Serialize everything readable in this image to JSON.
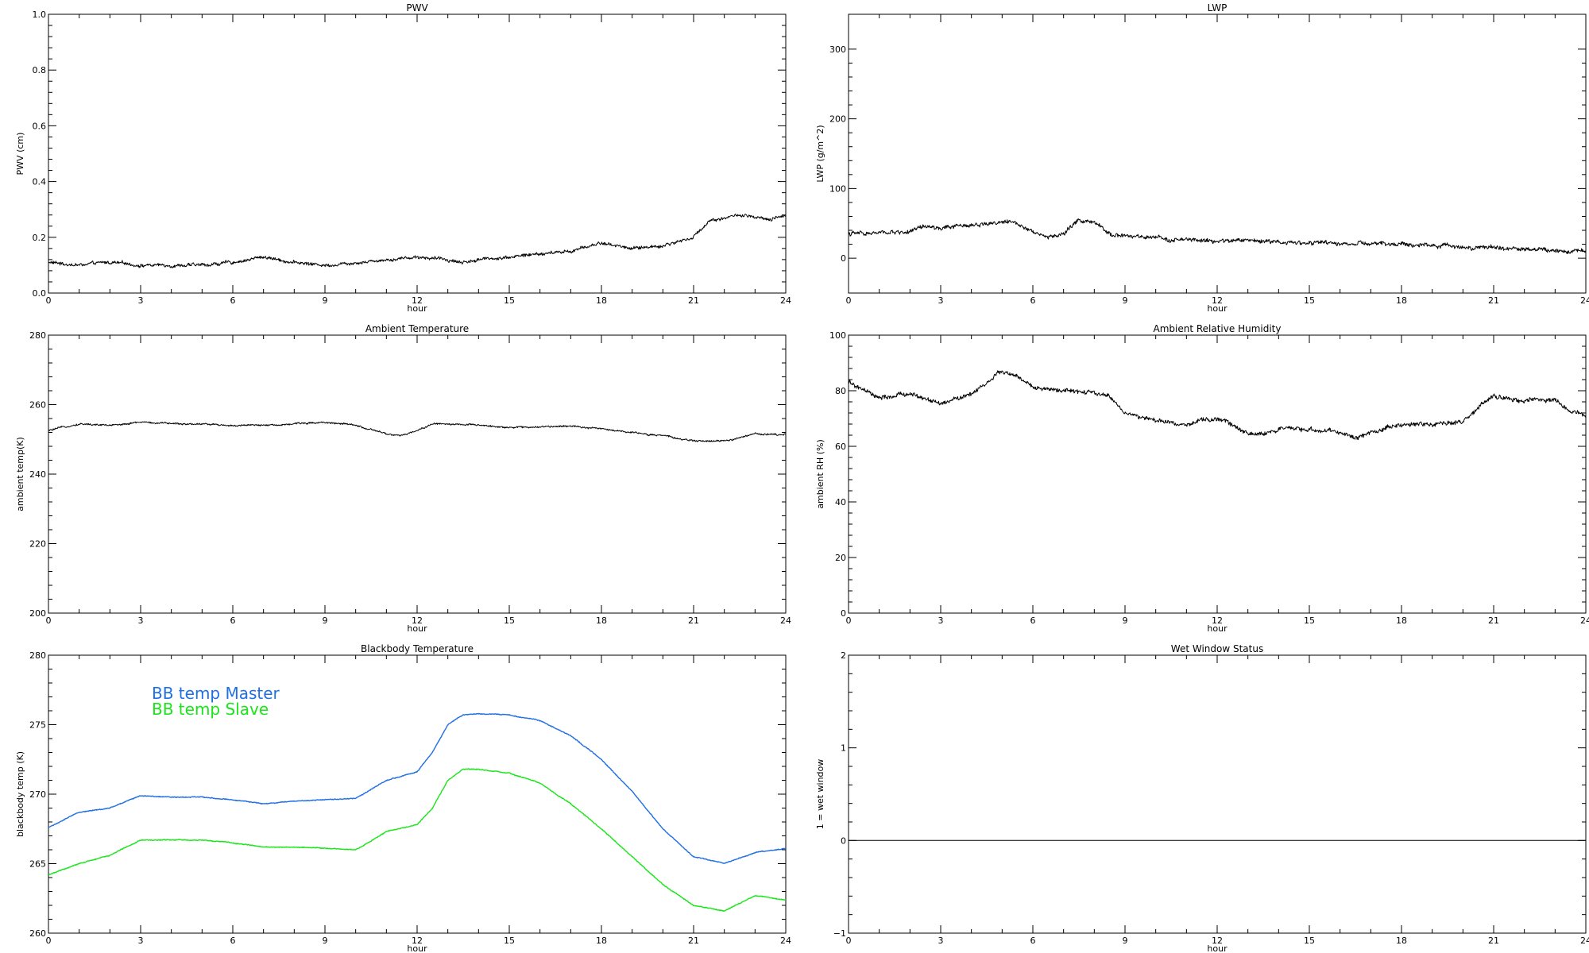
{
  "chart_data": [
    {
      "id": "pwv",
      "type": "line",
      "title": "PWV",
      "xlabel": "hour",
      "ylabel": "PWV (cm)",
      "xlim": [
        0,
        24
      ],
      "ylim": [
        0.0,
        1.0
      ],
      "xticks": [
        0,
        3,
        6,
        9,
        12,
        15,
        18,
        21,
        24
      ],
      "yticks": [
        0.0,
        0.2,
        0.4,
        0.6,
        0.8,
        1.0
      ],
      "ytick_labels": [
        "0.0",
        "0.2",
        "0.4",
        "0.6",
        "0.8",
        "1.0"
      ],
      "grid": false,
      "noise": 0.006,
      "series": [
        {
          "color": "#000000",
          "x": [
            0,
            1,
            2,
            3,
            4,
            5,
            6,
            7,
            8,
            9,
            10,
            11,
            12,
            13,
            13.5,
            14,
            15,
            16,
            17,
            18,
            19,
            20,
            21,
            21.5,
            22,
            22.5,
            23,
            23.5,
            24
          ],
          "y": [
            0.11,
            0.1,
            0.11,
            0.1,
            0.1,
            0.1,
            0.11,
            0.13,
            0.11,
            0.1,
            0.11,
            0.12,
            0.13,
            0.12,
            0.11,
            0.12,
            0.13,
            0.14,
            0.15,
            0.18,
            0.16,
            0.17,
            0.2,
            0.26,
            0.27,
            0.28,
            0.27,
            0.26,
            0.28
          ]
        }
      ]
    },
    {
      "id": "lwp",
      "type": "line",
      "title": "LWP",
      "xlabel": "hour",
      "ylabel": "LWP (g/m^2)",
      "xlim": [
        0,
        24
      ],
      "ylim": [
        -50,
        350
      ],
      "xticks": [
        0,
        3,
        6,
        9,
        12,
        15,
        18,
        21,
        24
      ],
      "yticks": [
        0,
        100,
        200,
        300
      ],
      "ytick_labels": [
        "0",
        "100",
        "200",
        "300"
      ],
      "grid": false,
      "noise": 3,
      "series": [
        {
          "color": "#000000",
          "x": [
            0,
            1,
            2,
            2.5,
            3,
            4,
            5,
            5.5,
            6,
            6.5,
            7,
            7.5,
            8,
            8.5,
            9,
            10,
            11,
            12,
            13,
            14,
            15,
            16,
            17,
            18,
            19,
            20,
            21,
            22,
            23,
            24
          ],
          "y": [
            35,
            36,
            38,
            45,
            42,
            48,
            52,
            50,
            40,
            30,
            35,
            55,
            50,
            35,
            32,
            28,
            26,
            24,
            26,
            24,
            22,
            21,
            20,
            20,
            18,
            17,
            15,
            13,
            12,
            10
          ]
        }
      ]
    },
    {
      "id": "ambient-temp",
      "type": "line",
      "title": "Ambient Temperature",
      "xlabel": "hour",
      "ylabel": "ambient temp(K)",
      "xlim": [
        0,
        24
      ],
      "ylim": [
        200,
        280
      ],
      "xticks": [
        0,
        3,
        6,
        9,
        12,
        15,
        18,
        21,
        24
      ],
      "yticks": [
        200,
        220,
        240,
        260,
        280
      ],
      "ytick_labels": [
        "200",
        "220",
        "240",
        "260",
        "280"
      ],
      "grid": false,
      "noise": 0.25,
      "series": [
        {
          "color": "#000000",
          "x": [
            0,
            1,
            2,
            3,
            4,
            5,
            6,
            7,
            8,
            9,
            10,
            11,
            11.5,
            12,
            12.5,
            13,
            14,
            15,
            16,
            17,
            18,
            19,
            20,
            21,
            22,
            23,
            24
          ],
          "y": [
            252.5,
            254.5,
            254.0,
            255.0,
            254.5,
            254.5,
            254.0,
            254.0,
            254.5,
            255.0,
            254.0,
            251.5,
            251.0,
            252.5,
            254.5,
            254.5,
            254.0,
            253.5,
            253.5,
            254.0,
            253.0,
            252.0,
            251.0,
            249.5,
            249.5,
            251.5,
            251.5
          ]
        }
      ]
    },
    {
      "id": "ambient-rh",
      "type": "line",
      "title": "Ambient Relative Humidity",
      "xlabel": "hour",
      "ylabel": "ambient RH (%)",
      "xlim": [
        0,
        24
      ],
      "ylim": [
        0,
        100
      ],
      "xticks": [
        0,
        3,
        6,
        9,
        12,
        15,
        18,
        21,
        24
      ],
      "yticks": [
        0,
        20,
        40,
        60,
        80,
        100
      ],
      "ytick_labels": [
        "0",
        "20",
        "40",
        "60",
        "80",
        "100"
      ],
      "grid": false,
      "noise": 0.8,
      "series": [
        {
          "color": "#000000",
          "x": [
            0,
            0.5,
            1,
            2,
            3,
            3.5,
            4,
            5,
            5.5,
            6,
            7,
            8,
            8.5,
            9,
            10,
            11,
            12,
            12.5,
            13,
            14,
            15,
            16,
            16.5,
            17,
            18,
            19,
            20,
            20.5,
            21,
            22,
            23,
            23.5,
            24
          ],
          "y": [
            83,
            80,
            77,
            79,
            75,
            77,
            79,
            87,
            85,
            81,
            80,
            79,
            78,
            72,
            69,
            68,
            70,
            68,
            64,
            66,
            66,
            65,
            63,
            65,
            68,
            68,
            69,
            74,
            78,
            76,
            77,
            72,
            71
          ]
        }
      ]
    },
    {
      "id": "blackbody-temp",
      "type": "line",
      "title": "Blackbody Temperature",
      "xlabel": "hour",
      "ylabel": "blackbody temp (K)",
      "xlim": [
        0,
        24
      ],
      "ylim": [
        260,
        280
      ],
      "xticks": [
        0,
        3,
        6,
        9,
        12,
        15,
        18,
        21,
        24
      ],
      "yticks": [
        260,
        265,
        270,
        275,
        280
      ],
      "ytick_labels": [
        "260",
        "265",
        "270",
        "275",
        "280"
      ],
      "grid": false,
      "noise": 0.03,
      "legend": "top-left",
      "series": [
        {
          "name": "BB temp Master",
          "color": "#1f6fe6",
          "x": [
            0,
            1,
            2,
            3,
            4,
            5,
            6,
            7,
            8,
            9,
            10,
            11,
            12,
            12.5,
            13,
            13.5,
            14,
            15,
            16,
            17,
            18,
            19,
            20,
            21,
            22,
            23,
            24
          ],
          "y": [
            267.6,
            268.7,
            269.0,
            269.9,
            269.8,
            269.8,
            269.6,
            269.3,
            269.5,
            269.6,
            269.7,
            271.0,
            271.6,
            273.0,
            275.0,
            275.7,
            275.8,
            275.7,
            275.3,
            274.2,
            272.5,
            270.2,
            267.5,
            265.5,
            265.0,
            265.8,
            266.1
          ]
        },
        {
          "name": "BB temp Slave",
          "color": "#19e619",
          "x": [
            0,
            1,
            2,
            3,
            4,
            5,
            6,
            7,
            8,
            9,
            10,
            11,
            12,
            12.5,
            13,
            13.5,
            14,
            15,
            16,
            17,
            18,
            19,
            20,
            21,
            22,
            23,
            24
          ],
          "y": [
            264.2,
            265.0,
            265.6,
            266.7,
            266.7,
            266.7,
            266.5,
            266.2,
            266.2,
            266.1,
            266.0,
            267.3,
            267.8,
            269.0,
            271.0,
            271.8,
            271.8,
            271.5,
            270.8,
            269.3,
            267.5,
            265.5,
            263.5,
            262.0,
            261.6,
            262.7,
            262.4
          ]
        }
      ]
    },
    {
      "id": "wet-window",
      "type": "line",
      "title": "Wet Window Status",
      "xlabel": "hour",
      "ylabel": "1 = wet window",
      "xlim": [
        0,
        24
      ],
      "ylim": [
        -1,
        2
      ],
      "xticks": [
        0,
        3,
        6,
        9,
        12,
        15,
        18,
        21,
        24
      ],
      "yticks": [
        -1,
        0,
        1,
        2
      ],
      "ytick_labels": [
        "−1",
        "0",
        "1",
        "2"
      ],
      "grid": false,
      "noise": 0,
      "series": [
        {
          "color": "#000000",
          "x": [
            0,
            24
          ],
          "y": [
            0,
            0
          ]
        }
      ]
    }
  ]
}
